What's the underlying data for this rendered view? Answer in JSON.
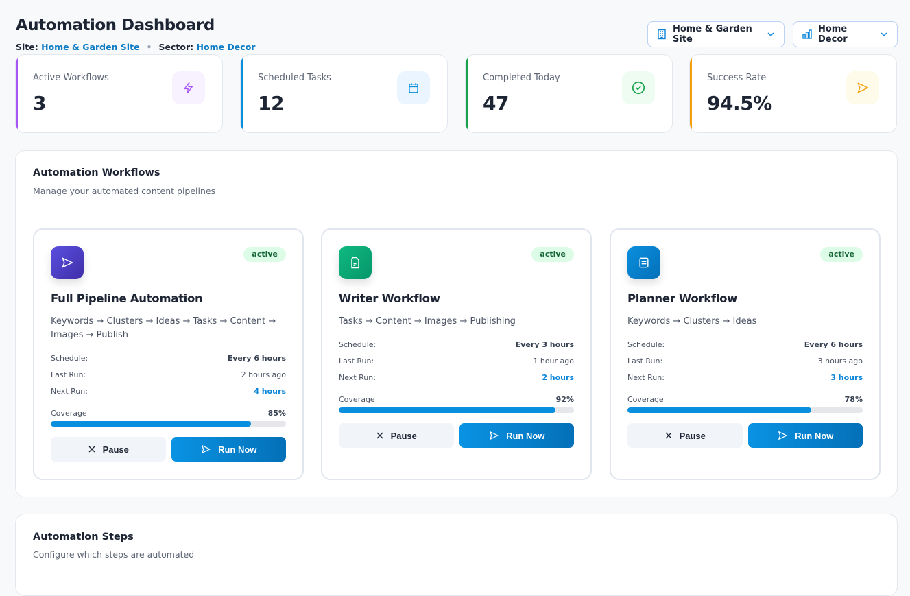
{
  "header": {
    "title": "Automation Dashboard",
    "site_label": "Site:",
    "site_value": "Home & Garden Site",
    "sector_label": "Sector:",
    "sector_value": "Home Decor",
    "separator": "•"
  },
  "selectors": {
    "site": {
      "value": "Home & Garden Site",
      "icon": "building-icon"
    },
    "sector": {
      "value": "Home Decor",
      "icon": "bar-chart-icon"
    }
  },
  "stats": [
    {
      "label": "Active Workflows",
      "value": "3",
      "icon": "bolt-icon",
      "color": "#a855f7"
    },
    {
      "label": "Scheduled Tasks",
      "value": "12",
      "icon": "calendar-icon",
      "color": "#0a8fdf"
    },
    {
      "label": "Completed Today",
      "value": "47",
      "icon": "check-circle-icon",
      "color": "#16a34a"
    },
    {
      "label": "Success Rate",
      "value": "94.5%",
      "icon": "send-icon",
      "color": "#f59e0b"
    }
  ],
  "workflows_panel": {
    "title": "Automation Workflows",
    "subtitle": "Manage your automated content pipelines"
  },
  "workflows": [
    {
      "title": "Full Pipeline Automation",
      "status": "active",
      "description": "Keywords → Clusters → Ideas → Tasks → Content → Images → Publish",
      "icon": "send-icon",
      "schedule_label": "Schedule:",
      "schedule": "Every 6 hours",
      "last_label": "Last Run:",
      "last_run": "2 hours ago",
      "next_label": "Next Run:",
      "next_run": "4 hours",
      "coverage_label": "Coverage",
      "coverage": "85%",
      "coverage_value": 85,
      "pause": "Pause",
      "run": "Run Now"
    },
    {
      "title": "Writer Workflow",
      "status": "active",
      "description": "Tasks → Content → Images → Publishing",
      "icon": "document-icon",
      "schedule_label": "Schedule:",
      "schedule": "Every 3 hours",
      "last_label": "Last Run:",
      "last_run": "1 hour ago",
      "next_label": "Next Run:",
      "next_run": "2 hours",
      "coverage_label": "Coverage",
      "coverage": "92%",
      "coverage_value": 92,
      "pause": "Pause",
      "run": "Run Now"
    },
    {
      "title": "Planner Workflow",
      "status": "active",
      "description": "Keywords → Clusters → Ideas",
      "icon": "list-icon",
      "schedule_label": "Schedule:",
      "schedule": "Every 6 hours",
      "last_label": "Last Run:",
      "last_run": "3 hours ago",
      "next_label": "Next Run:",
      "next_run": "3 hours",
      "coverage_label": "Coverage",
      "coverage": "78%",
      "coverage_value": 78,
      "pause": "Pause",
      "run": "Run Now"
    }
  ],
  "steps_panel": {
    "title": "Automation Steps",
    "subtitle": "Configure which steps are automated"
  }
}
